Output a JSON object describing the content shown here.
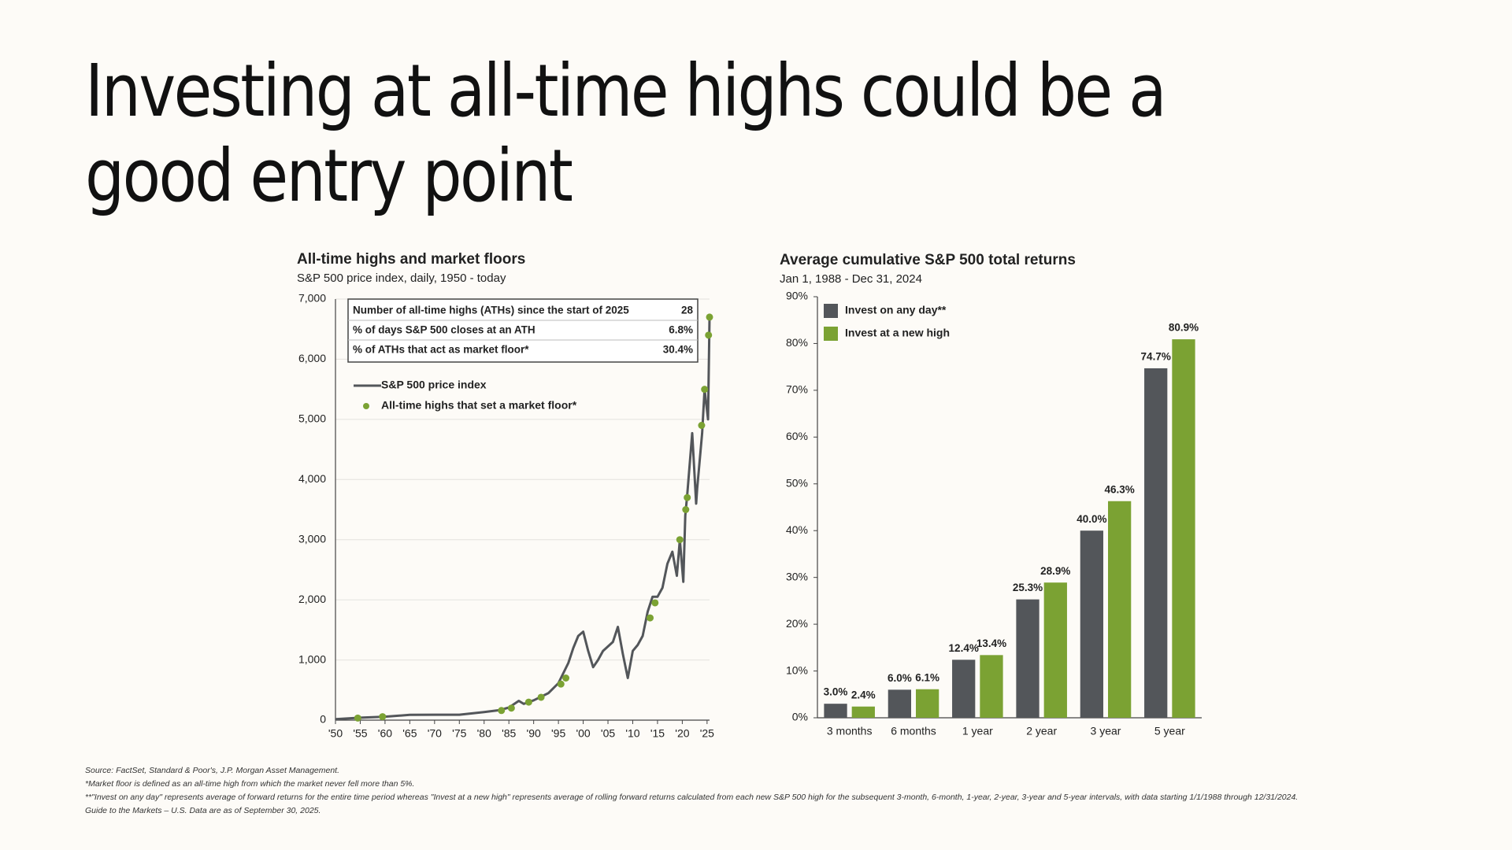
{
  "title": "Investing at all-time highs could be a good entry point",
  "chart_data": [
    {
      "type": "line",
      "title": "All-time highs and market floors",
      "subtitle": "S&P 500 price index, daily, 1950 - today",
      "xlim": [
        1950,
        2025.5
      ],
      "xticks": [
        {
          "value": 1950,
          "label": "'50"
        },
        {
          "value": 1955,
          "label": "'55"
        },
        {
          "value": 1960,
          "label": "'60"
        },
        {
          "value": 1965,
          "label": "'65"
        },
        {
          "value": 1970,
          "label": "'70"
        },
        {
          "value": 1975,
          "label": "'75"
        },
        {
          "value": 1980,
          "label": "'80"
        },
        {
          "value": 1985,
          "label": "'85"
        },
        {
          "value": 1990,
          "label": "'90"
        },
        {
          "value": 1995,
          "label": "'95"
        },
        {
          "value": 2000,
          "label": "'00"
        },
        {
          "value": 2005,
          "label": "'05"
        },
        {
          "value": 2010,
          "label": "'10"
        },
        {
          "value": 2015,
          "label": "'15"
        },
        {
          "value": 2020,
          "label": "'20"
        },
        {
          "value": 2025,
          "label": "'25"
        }
      ],
      "ylim": [
        0,
        7000
      ],
      "yticks": [
        0,
        {
          "value": 1000,
          "label": "1,000"
        },
        {
          "value": 2000,
          "label": "2,000"
        },
        {
          "value": 3000,
          "label": "3,000"
        },
        {
          "value": 4000,
          "label": "4,000"
        },
        {
          "value": 5000,
          "label": "5,000"
        },
        {
          "value": 6000,
          "label": "6,000"
        },
        {
          "value": 7000,
          "label": "7,000"
        }
      ],
      "grid": true,
      "table": {
        "rows": [
          [
            "Number of all-time highs (ATHs) since the start of 2025",
            "28"
          ],
          [
            "% of days S&P 500 closes at an ATH",
            "6.8%"
          ],
          [
            "% of ATHs that act as market floor*",
            "30.4%"
          ]
        ]
      },
      "series": [
        {
          "name": "S&P 500 price index",
          "type": "line",
          "color": "#53565a",
          "x": [
            1950,
            1955,
            1960,
            1965,
            1970,
            1975,
            1980,
            1983,
            1985,
            1987,
            1988,
            1990,
            1993,
            1995,
            1997,
            1998,
            1999,
            2000,
            2001,
            2002,
            2003,
            2004,
            2006,
            2007,
            2008,
            2009,
            2010,
            2011,
            2012,
            2013,
            2014,
            2015,
            2016,
            2017,
            2018,
            2018.9,
            2019.5,
            2020.2,
            2020.6,
            2021,
            2022,
            2022.8,
            2023,
            2024,
            2024.5,
            2025.2,
            2025.5
          ],
          "values": [
            17,
            40,
            58,
            88,
            90,
            90,
            135,
            165,
            210,
            320,
            270,
            330,
            450,
            615,
            950,
            1200,
            1400,
            1470,
            1150,
            880,
            1000,
            1150,
            1300,
            1550,
            1100,
            700,
            1150,
            1250,
            1400,
            1800,
            2050,
            2050,
            2200,
            2600,
            2800,
            2400,
            3000,
            2300,
            3400,
            3750,
            4770,
            3600,
            3850,
            4770,
            5500,
            5000,
            6700
          ]
        },
        {
          "name": "All-time highs that set a market floor*",
          "type": "scatter",
          "color": "#7ba233",
          "x": [
            1954.5,
            1959.5,
            1983.5,
            1985.5,
            1989,
            1991.5,
            1995.5,
            1996.5,
            2013.5,
            2014.5,
            2019.5,
            2020.7,
            2021,
            2023.9,
            2024.5,
            2025.3,
            2025.5
          ],
          "values": [
            35,
            58,
            160,
            200,
            300,
            380,
            600,
            700,
            1700,
            1950,
            3000,
            3500,
            3700,
            4900,
            5500,
            6400,
            6700
          ]
        }
      ]
    },
    {
      "type": "bar",
      "title": "Average cumulative S&P 500 total returns",
      "subtitle": "Jan 1, 1988 - Dec 31, 2024",
      "categories": [
        "3 months",
        "6 months",
        "1 year",
        "2 year",
        "3 year",
        "5 year"
      ],
      "ylim": [
        0,
        90
      ],
      "yticks": [
        {
          "value": 0,
          "label": "0%"
        },
        {
          "value": 10,
          "label": "10%"
        },
        {
          "value": 20,
          "label": "20%"
        },
        {
          "value": 30,
          "label": "30%"
        },
        {
          "value": 40,
          "label": "40%"
        },
        {
          "value": 50,
          "label": "50%"
        },
        {
          "value": 60,
          "label": "60%"
        },
        {
          "value": 70,
          "label": "70%"
        },
        {
          "value": 80,
          "label": "80%"
        },
        {
          "value": 90,
          "label": "90%"
        }
      ],
      "grid": false,
      "series": [
        {
          "name": "Invest on any day**",
          "color": "#53565a",
          "values": [
            3.0,
            6.0,
            12.4,
            25.3,
            40.0,
            74.7
          ],
          "value_labels": [
            "3.0%",
            "6.0%",
            "12.4%",
            "25.3%",
            "40.0%",
            "74.7%"
          ]
        },
        {
          "name": "Invest at a new high",
          "color": "#7ba233",
          "values": [
            2.4,
            6.1,
            13.4,
            28.9,
            46.3,
            80.9
          ],
          "value_labels": [
            "2.4%",
            "6.1%",
            "13.4%",
            "28.9%",
            "46.3%",
            "80.9%"
          ]
        }
      ]
    }
  ],
  "footnotes": [
    "Source: FactSet, Standard & Poor's, J.P. Morgan Asset Management.",
    "*Market floor is defined as an all-time high from which the market never fell more than 5%.",
    "**\"Invest on any day\" represents average of forward returns for the entire time period whereas \"Invest at a new high\" represents average of rolling forward returns calculated from each new S&P 500 high for the subsequent 3-month, 6-month, 1-year, 2-year, 3-year and 5-year intervals, with data starting 1/1/1988 through 12/31/2024.",
    "Guide to the Markets – U.S. Data are as of September 30, 2025."
  ]
}
